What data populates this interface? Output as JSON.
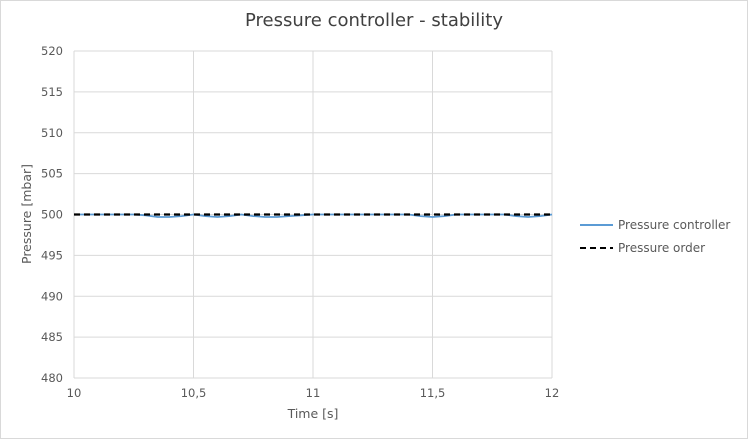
{
  "chart_data": {
    "type": "line",
    "title": "Pressure controller - stability",
    "xlabel": "Time [s]",
    "ylabel": "Pressure [mbar]",
    "xlim": [
      10,
      12
    ],
    "ylim": [
      480,
      520
    ],
    "x_ticks": [
      10,
      10.5,
      11,
      11.5,
      12
    ],
    "x_tick_labels": [
      "10",
      "10,5",
      "11",
      "11,5",
      "12"
    ],
    "y_ticks": [
      480,
      485,
      490,
      495,
      500,
      505,
      510,
      515,
      520
    ],
    "y_tick_labels": [
      "480",
      "485",
      "490",
      "495",
      "500",
      "505",
      "510",
      "515",
      "520"
    ],
    "grid": true,
    "legend_position": "right",
    "x": [
      10,
      10.05,
      10.1,
      10.15,
      10.2,
      10.25,
      10.3,
      10.35,
      10.4,
      10.45,
      10.5,
      10.55,
      10.6,
      10.65,
      10.7,
      10.75,
      10.8,
      10.85,
      10.9,
      10.95,
      11,
      11.05,
      11.1,
      11.15,
      11.2,
      11.25,
      11.3,
      11.35,
      11.4,
      11.45,
      11.5,
      11.55,
      11.6,
      11.65,
      11.7,
      11.75,
      11.8,
      11.85,
      11.9,
      11.95,
      12
    ],
    "series": [
      {
        "name": "Pressure controller",
        "color": "#5b9bd5",
        "style": "solid",
        "values": [
          500,
          500,
          500,
          500,
          500,
          500,
          499.9,
          499.7,
          499.7,
          499.8,
          500,
          499.8,
          499.7,
          499.8,
          500,
          499.8,
          499.7,
          499.7,
          499.8,
          499.9,
          500,
          500,
          500,
          500,
          500,
          500,
          500,
          500,
          500,
          499.8,
          499.7,
          499.8,
          500,
          500,
          500,
          500,
          500,
          499.8,
          499.7,
          499.8,
          500
        ]
      },
      {
        "name": "Pressure order",
        "color": "#000000",
        "style": "dashed",
        "values": [
          500,
          500,
          500,
          500,
          500,
          500,
          500,
          500,
          500,
          500,
          500,
          500,
          500,
          500,
          500,
          500,
          500,
          500,
          500,
          500,
          500,
          500,
          500,
          500,
          500,
          500,
          500,
          500,
          500,
          500,
          500,
          500,
          500,
          500,
          500,
          500,
          500,
          500,
          500,
          500,
          500
        ]
      }
    ]
  }
}
